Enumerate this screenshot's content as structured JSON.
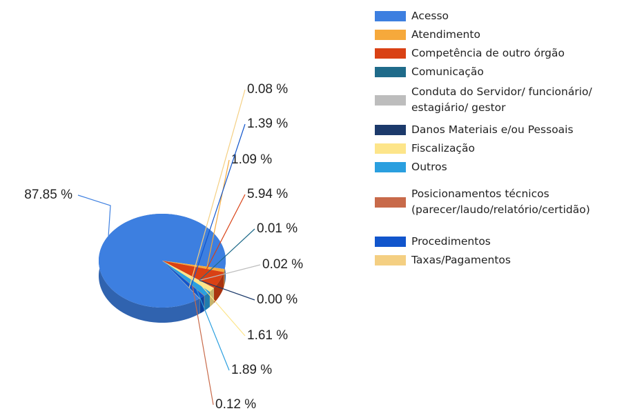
{
  "chart_data": {
    "type": "pie",
    "categories": [
      "Acesso",
      "Atendimento",
      "Competência de outro órgão",
      "Comunicação",
      "Conduta do Servidor/ funcionário/ estagiário/ gestor",
      "Danos Materiais e/ou Pessoais",
      "Fiscalização",
      "Outros",
      "Posicionamentos técnicos (parecer/laudo/relatório/certidão)",
      "Procedimentos",
      "Taxas/Pagamentos"
    ],
    "values": [
      87.85,
      1.09,
      5.94,
      0.01,
      0.02,
      0.0,
      1.61,
      1.89,
      0.12,
      1.39,
      0.08
    ],
    "value_labels": [
      "87.85 %",
      "1.09 %",
      "5.94 %",
      "0.01 %",
      "0.02 %",
      "0.00 %",
      "1.61 %",
      "1.89 %",
      "0.12 %",
      "1.39 %",
      "0.08 %"
    ],
    "colors": [
      "#3d7fe0",
      "#f6a93b",
      "#d94114",
      "#1f6b8a",
      "#bdbdbd",
      "#1c3a6b",
      "#fde58a",
      "#2a9fdf",
      "#c86a4a",
      "#1155cc",
      "#f4cf82"
    ],
    "legend": "right"
  }
}
